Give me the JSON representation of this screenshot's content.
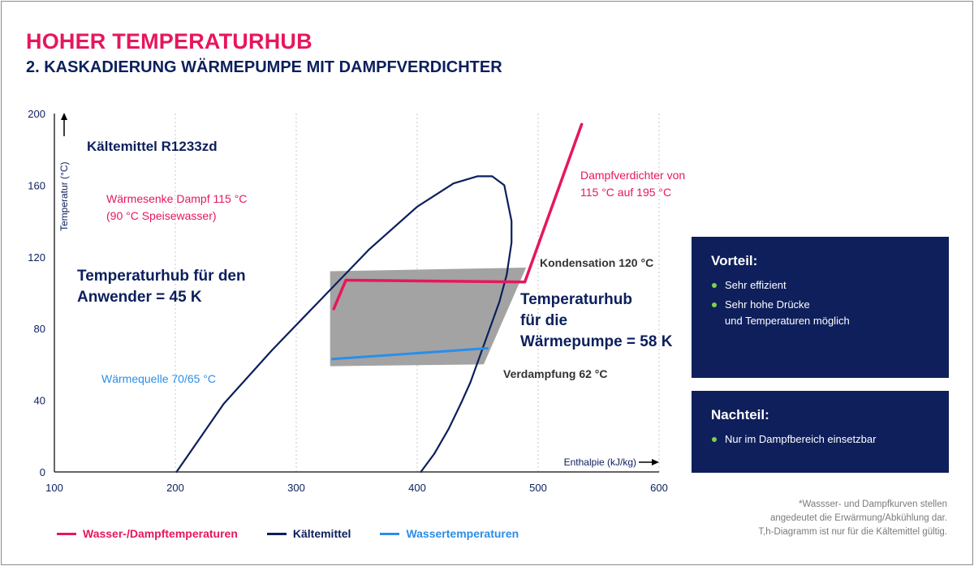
{
  "header": {
    "title": "HOHER TEMPERATURHUB",
    "subtitle": "2. KASKADIERUNG WÄRMEPUMPE MIT DAMPFVERDICHTER"
  },
  "colors": {
    "accent_pink": "#e6175b",
    "navy": "#0c1f5c",
    "blue": "#2a8ee8",
    "grey_area": "#a3a3a3",
    "box_bg": "#0e1f5b",
    "bullet_green": "#7fd341"
  },
  "chart_data": {
    "type": "line",
    "xlabel": "Enthalpie (kJ/kg)",
    "ylabel": "Temperatur (°C)",
    "xlim": [
      100,
      600
    ],
    "ylim": [
      0,
      200
    ],
    "x_ticks": [
      "100",
      "200",
      "300",
      "400",
      "500",
      "600"
    ],
    "y_ticks": [
      "0",
      "40",
      "80",
      "120",
      "160",
      "200"
    ],
    "grid": "vertical dotted",
    "series": [
      {
        "name": "Kältemittel",
        "color": "#0c1f5c",
        "x": [
          201,
          240,
          280,
          320,
          360,
          400,
          430,
          450,
          462,
          472,
          478,
          478,
          474,
          468,
          460,
          452,
          444,
          436,
          426,
          414,
          403
        ],
        "y": [
          0,
          38,
          68,
          96,
          124,
          148,
          161,
          165,
          165,
          160,
          140,
          128,
          110,
          95,
          80,
          65,
          50,
          38,
          24,
          10,
          0
        ]
      },
      {
        "name": "Wasser-/Dampftemperaturen",
        "color": "#e6175b",
        "x": [
          331,
          341,
          489,
          536
        ],
        "y": [
          91,
          107,
          106,
          194
        ]
      },
      {
        "name": "Wassertemperaturen",
        "color": "#2a8ee8",
        "x": [
          330,
          458
        ],
        "y": [
          63,
          69
        ]
      }
    ],
    "area": {
      "x": [
        328,
        490,
        455,
        328
      ],
      "y": [
        112,
        114,
        60,
        59
      ]
    },
    "annotations": {
      "refrigerant": "Kältemittel R1233zd",
      "sink_line1": "Wärmesenke Dampf 115 °C",
      "sink_line2": "(90 °C Speisewasser)",
      "compressor_line1": "Dampfverdichter von",
      "compressor_line2": "115 °C auf 195 °C",
      "user_lift_line1": "Temperaturhub für den",
      "user_lift_line2": "Anwender = 45 K",
      "condensation": "Kondensation 120 °C",
      "hp_lift_line1": "Temperaturhub",
      "hp_lift_line2": "für die",
      "hp_lift_line3": "Wärmepumpe = 58 K",
      "source": "Wärmequelle 70/65 °C",
      "evaporation": "Verdampfung 62 °C"
    }
  },
  "advantage": {
    "title": "Vorteil:",
    "items": [
      "Sehr effizient",
      "Sehr hohe Drücke",
      "und Temperaturen möglich"
    ]
  },
  "disadvantage": {
    "title": "Nachteil:",
    "items": [
      "Nur im Dampfbereich einsetzbar"
    ]
  },
  "footnote": {
    "line1": "*Wassser- und Dampfkurven stellen",
    "line2": "angedeutet die Erwärmung/Abkühlung dar.",
    "line3": "T,h-Diagramm ist nur für die Kältemittel gültig."
  },
  "legend": [
    {
      "label": "Wasser-/Dampftemperaturen",
      "color": "#e6175b"
    },
    {
      "label": "Kältemittel",
      "color": "#0c1f5c"
    },
    {
      "label": "Wassertemperaturen",
      "color": "#2a8ee8"
    }
  ]
}
